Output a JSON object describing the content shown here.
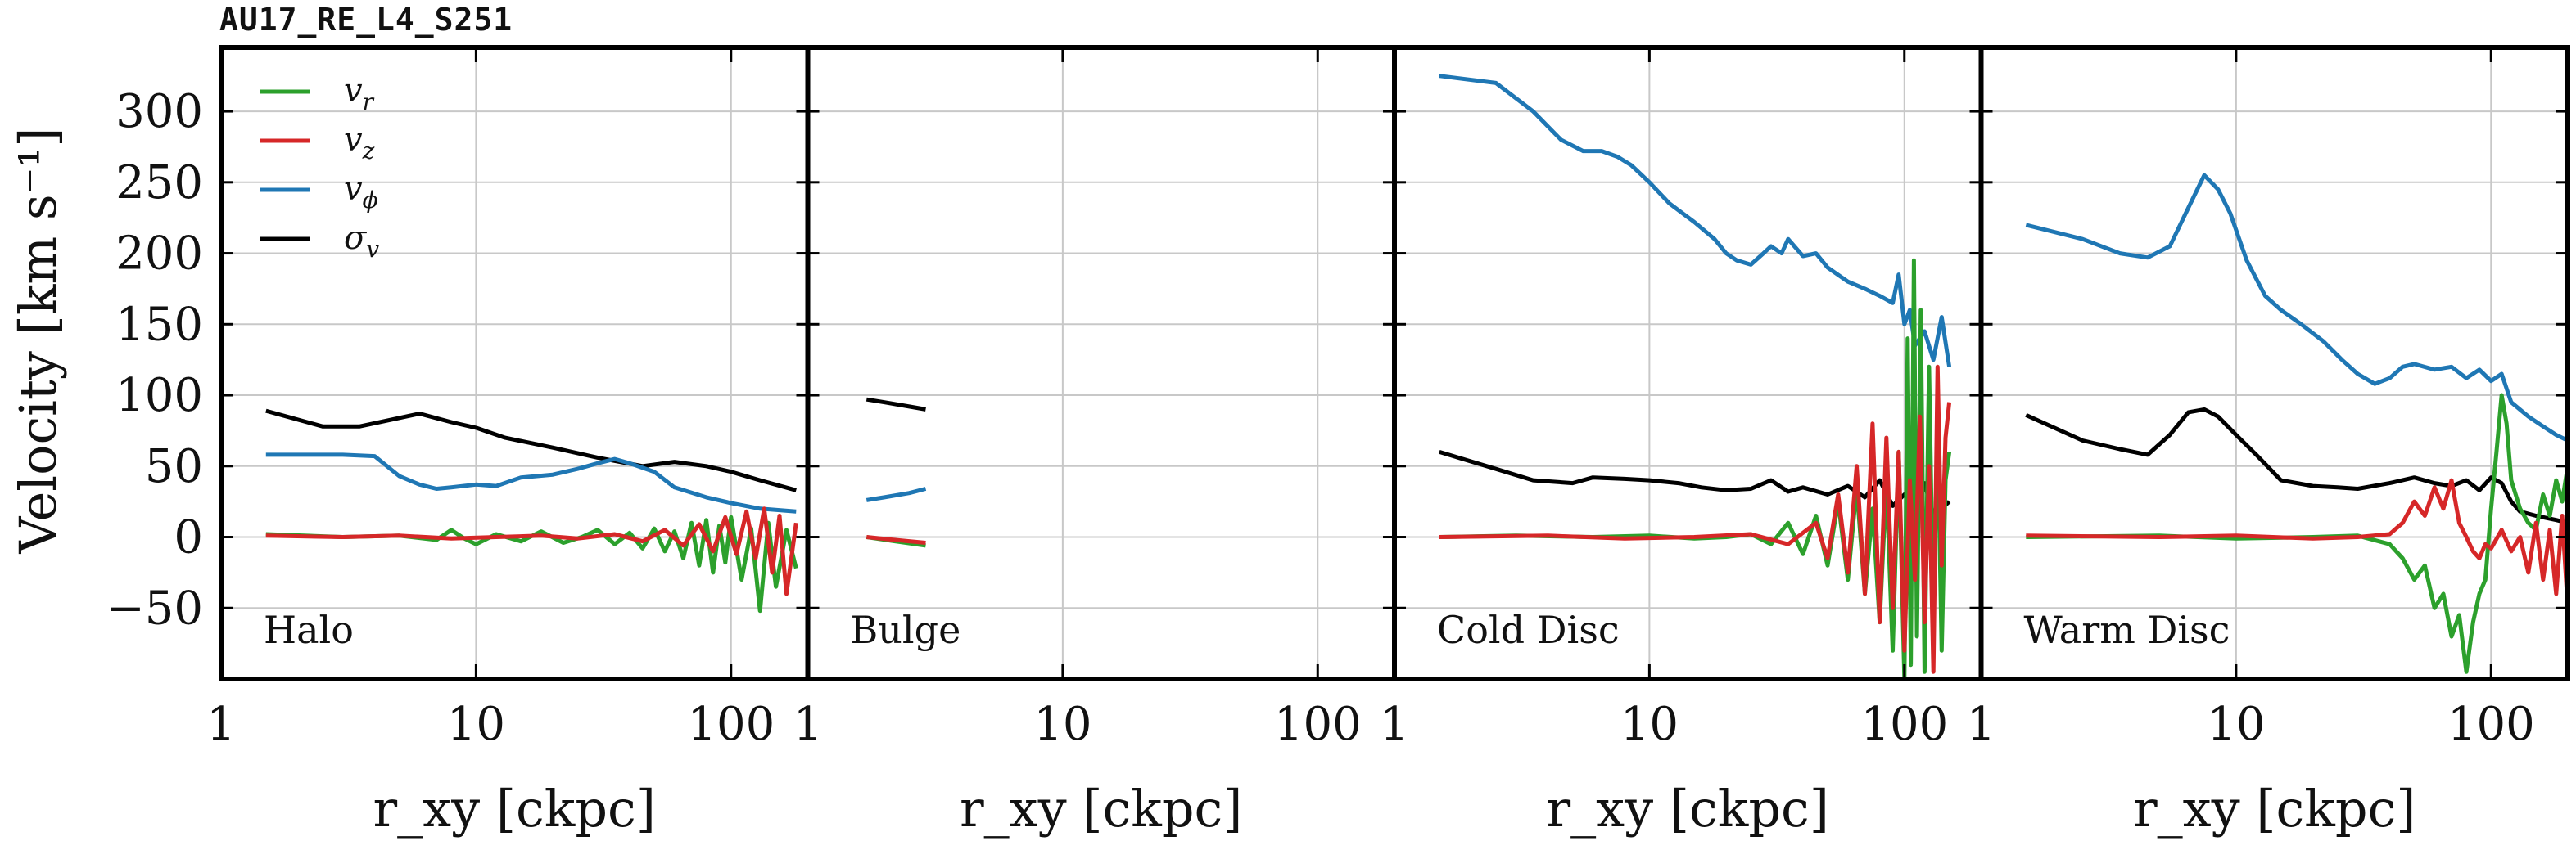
{
  "figure_title": "AU17_RE_L4_S251",
  "colors": {
    "v_r": "#2ca02c",
    "v_z": "#d62728",
    "v_phi": "#1f77b4",
    "sigma_v": "#000000"
  },
  "chart_data": {
    "type": "line",
    "ylabel": "Velocity [km s⁻¹]",
    "xlabel": "r_xy [ckpc]",
    "xscale": "log",
    "xlim": [
      1,
      200
    ],
    "ylim": [
      -100,
      345
    ],
    "yticks": [
      -50,
      0,
      50,
      100,
      150,
      200,
      250,
      300
    ],
    "ytick_labels": [
      "−50",
      "0",
      "50",
      "100",
      "150",
      "200",
      "250",
      "300"
    ],
    "xticks": [
      1,
      10,
      100
    ],
    "xtick_labels": [
      "1",
      "10",
      "100"
    ],
    "grid": true,
    "legend": {
      "placement": "top-left",
      "entries": [
        {
          "key": "v_r",
          "base": "v",
          "sub": "r"
        },
        {
          "key": "v_z",
          "base": "v",
          "sub": "z"
        },
        {
          "key": "v_phi",
          "base": "v",
          "sub": "ϕ"
        },
        {
          "key": "sigma_v",
          "base": "σ",
          "sub": "v"
        }
      ]
    },
    "panels": [
      {
        "label": "Halo",
        "series": [
          {
            "key": "sigma_v",
            "x": [
              1.5,
              2.5,
              3.5,
              6,
              8,
              10,
              13,
              20,
              30,
              45,
              60,
              80,
              100,
              130,
              180
            ],
            "y": [
              89,
              78,
              78,
              87,
              81,
              77,
              70,
              63,
              56,
              50,
              53,
              50,
              46,
              40,
              33
            ]
          },
          {
            "key": "v_phi",
            "x": [
              1.5,
              2,
              3,
              4,
              5,
              6,
              7,
              8,
              10,
              12,
              15,
              20,
              25,
              30,
              35,
              40,
              50,
              60,
              80,
              100,
              130,
              180
            ],
            "y": [
              58,
              58,
              58,
              57,
              43,
              37,
              34,
              35,
              37,
              36,
              42,
              44,
              48,
              52,
              55,
              52,
              46,
              35,
              28,
              24,
              20,
              18
            ]
          },
          {
            "key": "v_r",
            "x": [
              1.5,
              3,
              5,
              7,
              8,
              9,
              10,
              12,
              15,
              18,
              22,
              26,
              30,
              35,
              40,
              45,
              50,
              55,
              60,
              65,
              70,
              75,
              80,
              85,
              90,
              95,
              100,
              110,
              120,
              130,
              140,
              150,
              165,
              180
            ],
            "y": [
              2,
              0,
              1,
              -2,
              5,
              -1,
              -5,
              2,
              -3,
              4,
              -4,
              0,
              5,
              -5,
              3,
              -8,
              6,
              -10,
              4,
              -15,
              10,
              -20,
              12,
              -25,
              8,
              -18,
              14,
              -30,
              6,
              -52,
              10,
              -35,
              5,
              -22
            ]
          },
          {
            "key": "v_z",
            "x": [
              1.5,
              3,
              5,
              8,
              12,
              18,
              25,
              35,
              45,
              55,
              65,
              75,
              85,
              95,
              105,
              115,
              125,
              135,
              145,
              155,
              165,
              180
            ],
            "y": [
              1,
              0,
              1,
              -1,
              0,
              1,
              -1,
              2,
              -3,
              5,
              -6,
              9,
              -10,
              14,
              -12,
              18,
              -15,
              20,
              -25,
              15,
              -40,
              10
            ]
          }
        ]
      },
      {
        "label": "Bulge",
        "series": [
          {
            "key": "sigma_v",
            "x": [
              1.7,
              2.0,
              2.5,
              2.9
            ],
            "y": [
              97,
              95,
              92,
              90
            ]
          },
          {
            "key": "v_phi",
            "x": [
              1.7,
              2.0,
              2.5,
              2.9
            ],
            "y": [
              26,
              28,
              31,
              34
            ]
          },
          {
            "key": "v_r",
            "x": [
              1.7,
              2.2,
              2.9
            ],
            "y": [
              0,
              -3,
              -6
            ]
          },
          {
            "key": "v_z",
            "x": [
              1.7,
              2.2,
              2.9
            ],
            "y": [
              0,
              -2,
              -4
            ]
          }
        ]
      },
      {
        "label": "Cold Disc",
        "series": [
          {
            "key": "v_phi",
            "x": [
              1.5,
              2.5,
              3.5,
              4.5,
              5.5,
              6.5,
              7.5,
              8.5,
              10,
              12,
              15,
              18,
              20,
              22,
              25,
              28,
              30,
              33,
              35,
              40,
              45,
              50,
              60,
              70,
              80,
              90,
              95,
              100,
              105,
              110,
              120,
              130,
              140,
              150
            ],
            "y": [
              325,
              320,
              300,
              280,
              272,
              272,
              268,
              262,
              250,
              235,
              222,
              210,
              200,
              195,
              192,
              200,
              205,
              200,
              210,
              198,
              200,
              190,
              180,
              175,
              170,
              165,
              185,
              150,
              160,
              135,
              145,
              125,
              155,
              120
            ]
          },
          {
            "key": "sigma_v",
            "x": [
              1.5,
              2.5,
              3.5,
              5,
              6,
              8,
              10,
              13,
              16,
              20,
              25,
              30,
              35,
              40,
              50,
              60,
              70,
              80,
              90,
              100,
              110,
              120,
              130,
              150
            ],
            "y": [
              60,
              48,
              40,
              38,
              42,
              41,
              40,
              38,
              35,
              33,
              34,
              40,
              32,
              35,
              30,
              36,
              28,
              40,
              22,
              30,
              20,
              38,
              15,
              25
            ]
          },
          {
            "key": "v_r",
            "x": [
              1.5,
              3,
              6,
              10,
              15,
              20,
              25,
              30,
              35,
              40,
              45,
              50,
              55,
              60,
              65,
              70,
              75,
              80,
              85,
              90,
              95,
              100,
              103,
              106,
              109,
              112,
              116,
              120,
              125,
              130,
              135,
              140,
              145,
              150
            ],
            "y": [
              0,
              1,
              0,
              1,
              -1,
              0,
              2,
              -5,
              10,
              -12,
              15,
              -20,
              25,
              -30,
              35,
              -40,
              20,
              -60,
              40,
              -80,
              60,
              -100,
              140,
              -90,
              195,
              -70,
              160,
              -95,
              120,
              -60,
              80,
              -80,
              40,
              60
            ]
          },
          {
            "key": "v_z",
            "x": [
              1.5,
              4,
              8,
              15,
              25,
              35,
              45,
              50,
              55,
              60,
              65,
              70,
              75,
              80,
              85,
              90,
              95,
              100,
              105,
              110,
              115,
              120,
              125,
              130,
              135,
              140,
              145,
              150
            ],
            "y": [
              0,
              1,
              -1,
              0,
              2,
              -5,
              10,
              -15,
              30,
              -25,
              50,
              -40,
              80,
              -60,
              70,
              -50,
              60,
              -80,
              40,
              -30,
              85,
              -60,
              50,
              -95,
              120,
              -20,
              70,
              95
            ]
          }
        ]
      },
      {
        "label": "Warm Disc",
        "series": [
          {
            "key": "v_phi",
            "x": [
              1.5,
              2.5,
              3.5,
              4.5,
              5.5,
              6.5,
              7.5,
              8.5,
              9.5,
              11,
              13,
              15,
              18,
              22,
              26,
              30,
              35,
              40,
              45,
              50,
              60,
              70,
              80,
              90,
              100,
              110,
              120,
              140,
              160,
              180,
              200
            ],
            "y": [
              220,
              210,
              200,
              197,
              205,
              232,
              255,
              245,
              228,
              195,
              170,
              160,
              150,
              138,
              125,
              115,
              108,
              112,
              120,
              122,
              118,
              120,
              112,
              118,
              110,
              115,
              95,
              85,
              78,
              72,
              68
            ]
          },
          {
            "key": "sigma_v",
            "x": [
              1.5,
              2.5,
              3.5,
              4.5,
              5.5,
              6.5,
              7.5,
              8.5,
              10,
              12,
              15,
              20,
              25,
              30,
              40,
              50,
              60,
              70,
              80,
              90,
              100,
              110,
              120,
              130,
              150,
              180,
              200
            ],
            "y": [
              86,
              68,
              62,
              58,
              72,
              88,
              90,
              85,
              72,
              58,
              40,
              36,
              35,
              34,
              38,
              42,
              38,
              36,
              40,
              33,
              42,
              38,
              25,
              18,
              15,
              12,
              10
            ]
          },
          {
            "key": "v_r",
            "x": [
              1.5,
              5,
              10,
              20,
              30,
              40,
              45,
              50,
              55,
              60,
              65,
              70,
              75,
              80,
              85,
              90,
              95,
              100,
              105,
              110,
              115,
              120,
              130,
              140,
              150,
              160,
              170,
              180,
              190,
              200
            ],
            "y": [
              0,
              1,
              -1,
              0,
              1,
              -5,
              -15,
              -30,
              -20,
              -50,
              -40,
              -70,
              -55,
              -95,
              -60,
              -40,
              -30,
              20,
              60,
              100,
              80,
              40,
              20,
              10,
              5,
              30,
              15,
              40,
              25,
              50
            ]
          },
          {
            "key": "v_z",
            "x": [
              1.5,
              5,
              10,
              20,
              30,
              40,
              45,
              50,
              55,
              60,
              65,
              70,
              75,
              80,
              85,
              90,
              95,
              100,
              110,
              120,
              130,
              140,
              150,
              160,
              170,
              180,
              190,
              200
            ],
            "y": [
              1,
              0,
              1,
              -1,
              0,
              2,
              10,
              25,
              15,
              35,
              20,
              40,
              10,
              0,
              -10,
              -15,
              -5,
              -8,
              5,
              -10,
              0,
              -25,
              10,
              -30,
              5,
              -40,
              15,
              -50
            ]
          }
        ]
      }
    ]
  }
}
